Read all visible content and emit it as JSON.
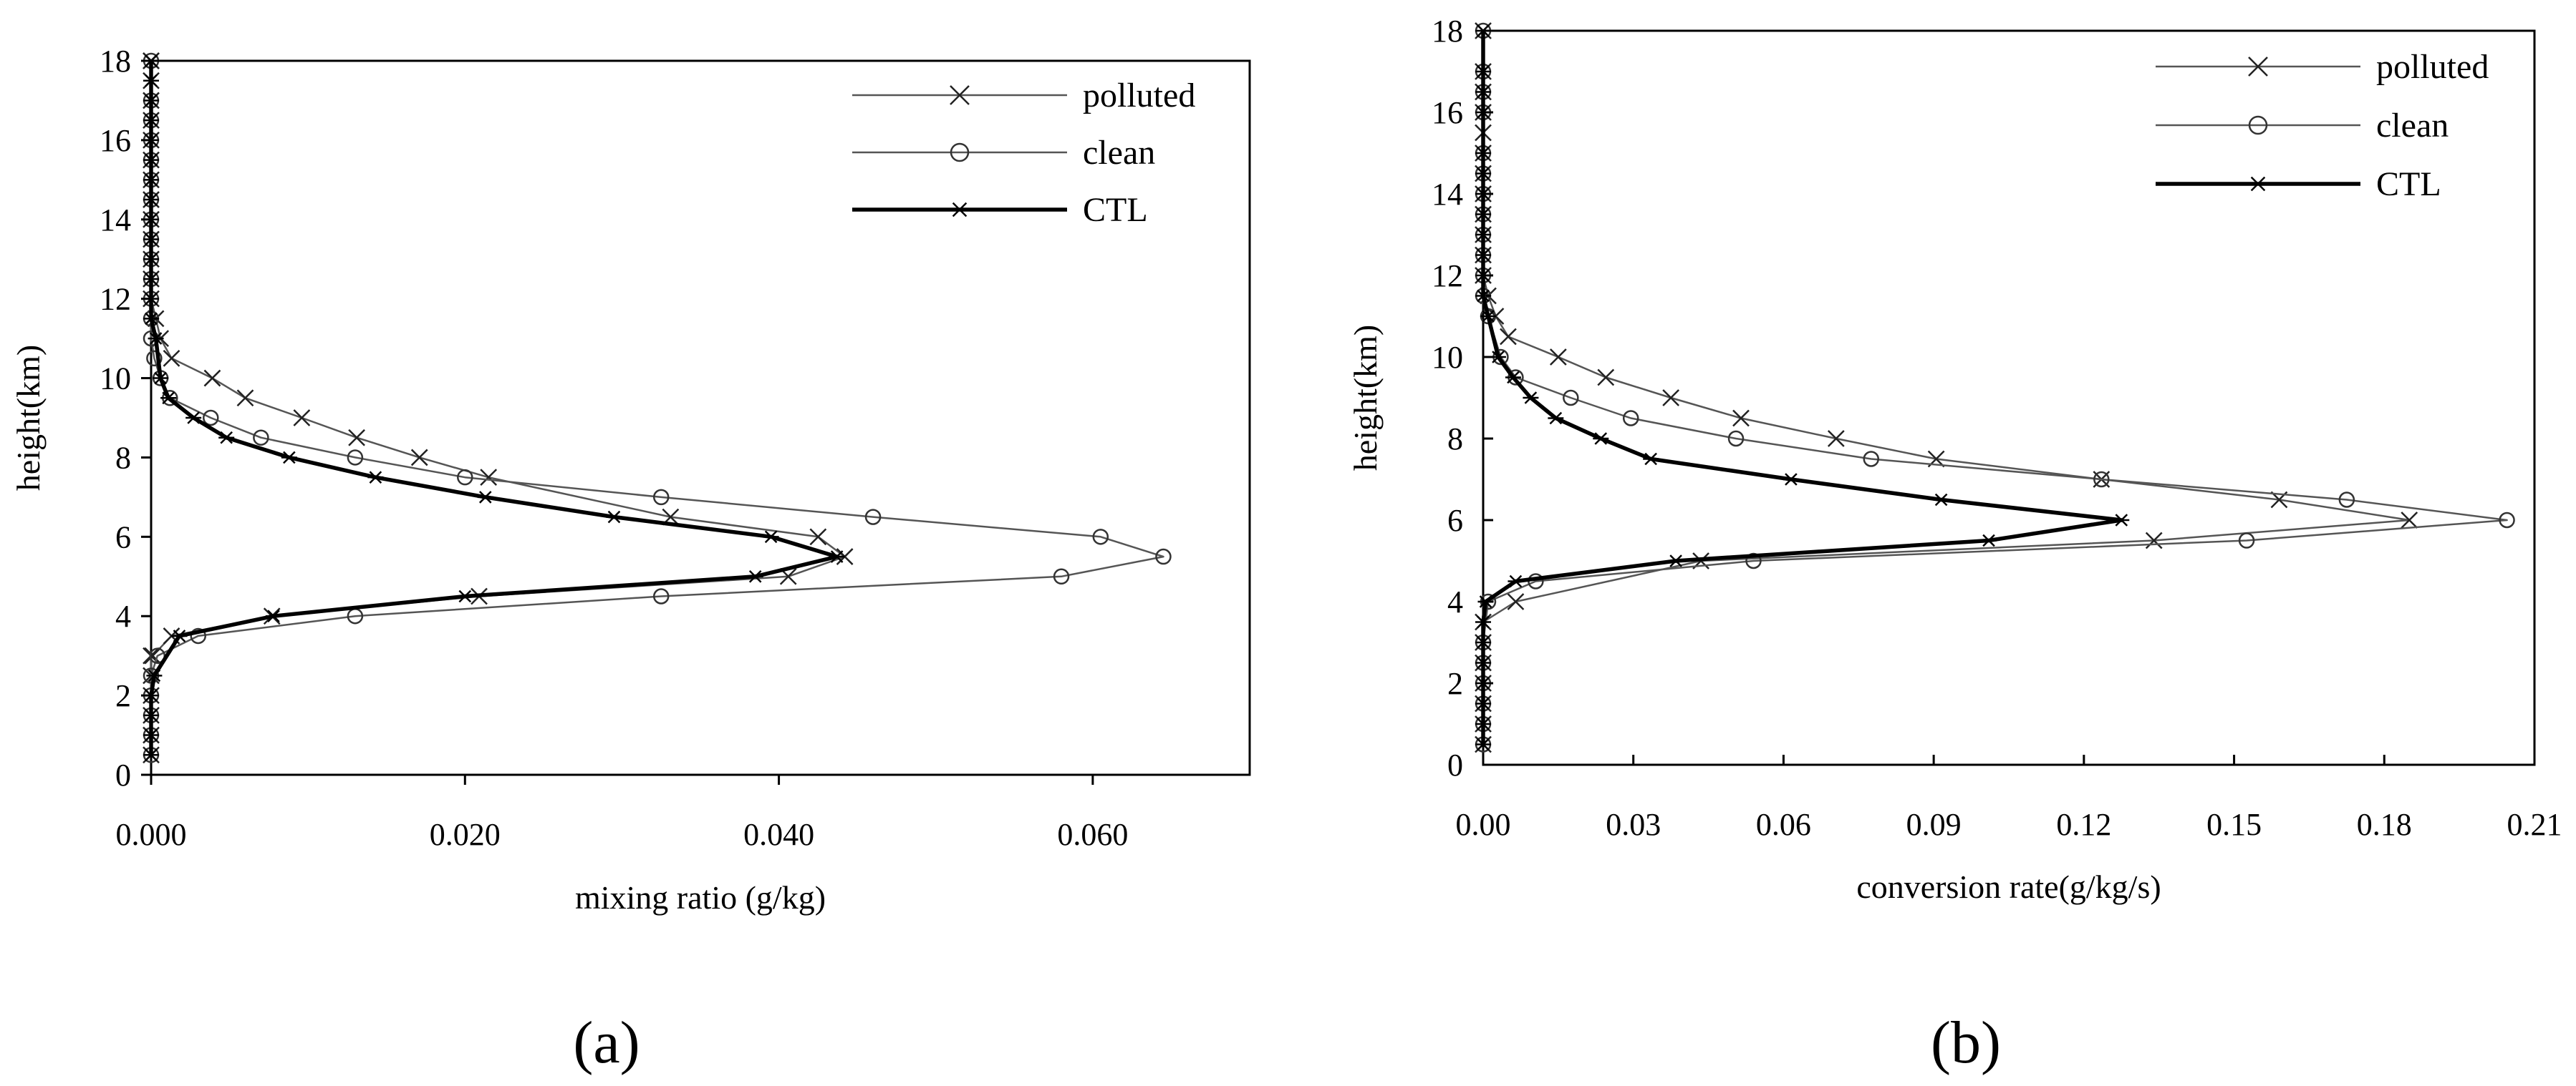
{
  "chart_data": [
    {
      "panel_label": "(a)",
      "type": "line",
      "xlabel": "mixing ratio (g/kg)",
      "ylabel": "height(km)",
      "xlim": [
        0,
        0.07
      ],
      "ylim": [
        0,
        18
      ],
      "xticks": [
        0,
        0.02,
        0.04,
        0.06
      ],
      "xtick_labels": [
        "0.000",
        "0.020",
        "0.040",
        "0.060"
      ],
      "yticks": [
        0,
        2,
        4,
        6,
        8,
        10,
        12,
        14,
        16,
        18
      ],
      "ytick_labels": [
        "0",
        "2",
        "4",
        "6",
        "8",
        "10",
        "12",
        "14",
        "16",
        "18"
      ],
      "legend": [
        "polluted",
        "clean",
        "CTL"
      ],
      "series": [
        {
          "name": "polluted",
          "marker": "x",
          "x": [
            0,
            0,
            0,
            0,
            0,
            0,
            0.0001,
            0.0013,
            0.0077,
            0.0209,
            0.0406,
            0.0442,
            0.0425,
            0.0331,
            0.0215,
            0.0171,
            0.0131,
            0.0096,
            0.006,
            0.0039,
            0.0013,
            0.0006,
            0.0003,
            0,
            0,
            0,
            0,
            0,
            0,
            0,
            0,
            0,
            0,
            0,
            0,
            0,
            0
          ],
          "y": [
            0.5,
            1,
            1.5,
            2,
            2.5,
            3,
            3,
            3.5,
            4,
            4.5,
            5,
            5.5,
            6,
            6.5,
            7.5,
            8,
            8.5,
            9,
            9.5,
            10,
            10.5,
            11,
            11.5,
            12,
            12.5,
            13,
            13.5,
            14,
            14.5,
            15,
            15.5,
            16,
            16.5,
            17,
            17.5,
            18,
            18
          ]
        },
        {
          "name": "clean",
          "marker": "o",
          "x": [
            0,
            0,
            0,
            0,
            0,
            0.0004,
            0.003,
            0.013,
            0.0325,
            0.058,
            0.0645,
            0.0605,
            0.046,
            0.0325,
            0.02,
            0.013,
            0.007,
            0.0038,
            0.0012,
            0.0006,
            0.0002,
            0,
            0,
            0,
            0,
            0,
            0,
            0,
            0,
            0,
            0,
            0,
            0,
            0,
            0
          ],
          "y": [
            0.5,
            1,
            1.5,
            2,
            2.5,
            3,
            3.5,
            4,
            4.5,
            5,
            5.5,
            6,
            6.5,
            7,
            7.5,
            8,
            8.5,
            9,
            9.5,
            10,
            10.5,
            11,
            11.5,
            12,
            12.5,
            13,
            13.5,
            14,
            14.5,
            15,
            15.5,
            16,
            16.5,
            17,
            18
          ]
        },
        {
          "name": "CTL",
          "marker": "*",
          "x": [
            0,
            0,
            0,
            0,
            0.0002,
            0.0018,
            0.0078,
            0.02,
            0.0385,
            0.0437,
            0.0395,
            0.0295,
            0.0213,
            0.0143,
            0.0088,
            0.0048,
            0.0027,
            0.0011,
            0.0006,
            0.0003,
            0,
            0,
            0,
            0,
            0,
            0,
            0,
            0,
            0,
            0,
            0,
            0,
            0,
            0,
            0
          ],
          "y": [
            0.5,
            1,
            1.5,
            2,
            2.5,
            3.5,
            4,
            4.5,
            5,
            5.5,
            6,
            6.5,
            7,
            7.5,
            8,
            8.5,
            9,
            9.5,
            10,
            11,
            11.5,
            12,
            12.5,
            13,
            13.5,
            14,
            14.5,
            15,
            15.5,
            16,
            16.5,
            17,
            17.5,
            18,
            18
          ]
        }
      ]
    },
    {
      "panel_label": "(b)",
      "type": "line",
      "xlabel": "conversion rate(g/kg/s)",
      "ylabel": "height(km)",
      "xlim": [
        0,
        0.21
      ],
      "ylim": [
        0,
        18
      ],
      "xticks": [
        0,
        0.03,
        0.06,
        0.09,
        0.12,
        0.15,
        0.18,
        0.21
      ],
      "xtick_labels": [
        "0.00",
        "0.03",
        "0.06",
        "0.09",
        "0.12",
        "0.15",
        "0.18",
        "0.21"
      ],
      "yticks": [
        0,
        2,
        4,
        6,
        8,
        10,
        12,
        14,
        16,
        18
      ],
      "ytick_labels": [
        "0",
        "2",
        "4",
        "6",
        "8",
        "10",
        "12",
        "14",
        "16",
        "18"
      ],
      "legend": [
        "polluted",
        "clean",
        "CTL"
      ],
      "series": [
        {
          "name": "polluted",
          "marker": "x",
          "x": [
            0,
            0,
            0,
            0,
            0,
            0,
            0,
            0.0065,
            0.0435,
            0.134,
            0.185,
            0.159,
            0.1235,
            0.0905,
            0.0705,
            0.0515,
            0.0375,
            0.0245,
            0.015,
            0.005,
            0.0025,
            0.001,
            0,
            0,
            0,
            0,
            0,
            0,
            0,
            0,
            0,
            0,
            0,
            0
          ],
          "y": [
            0.5,
            1,
            1.5,
            2,
            2.5,
            3,
            3.5,
            4,
            5,
            5.5,
            6,
            6.5,
            7,
            7.5,
            8,
            8.5,
            9,
            9.5,
            10,
            10.5,
            11,
            11.5,
            12,
            12.5,
            13,
            13.5,
            14,
            14.5,
            15,
            15.5,
            16,
            16.5,
            17,
            18
          ]
        },
        {
          "name": "clean",
          "marker": "o",
          "x": [
            0,
            0,
            0,
            0,
            0,
            0,
            0.001,
            0.0105,
            0.054,
            0.1525,
            0.2045,
            0.1725,
            0.1235,
            0.0775,
            0.0505,
            0.0295,
            0.0175,
            0.0065,
            0.0035,
            0.001,
            0,
            0,
            0,
            0,
            0,
            0,
            0,
            0,
            0,
            0,
            0,
            0
          ],
          "y": [
            0.5,
            1,
            1.5,
            2,
            2.5,
            3,
            4,
            4.5,
            5,
            5.5,
            6,
            6.5,
            7,
            7.5,
            8,
            8.5,
            9,
            9.5,
            10,
            11,
            11.5,
            12,
            12.5,
            13,
            13.5,
            14,
            14.5,
            15,
            16,
            16.5,
            17,
            18
          ]
        },
        {
          "name": "CTL",
          "marker": "*",
          "x": [
            0,
            0,
            0,
            0,
            0,
            0,
            0,
            0.0005,
            0.0065,
            0.0385,
            0.101,
            0.1275,
            0.0915,
            0.0615,
            0.0335,
            0.0235,
            0.0145,
            0.0095,
            0.006,
            0.003,
            0.001,
            0,
            0,
            0,
            0,
            0,
            0,
            0,
            0,
            0,
            0,
            0,
            0
          ],
          "y": [
            0.5,
            1,
            1.5,
            2,
            2.5,
            3,
            3.5,
            4,
            4.5,
            5,
            5.5,
            6,
            6.5,
            7,
            7.5,
            8,
            8.5,
            9,
            9.5,
            10,
            11,
            11.5,
            12,
            12.5,
            13,
            13.5,
            14,
            14.5,
            15,
            16,
            16.5,
            17,
            18
          ]
        }
      ]
    }
  ]
}
